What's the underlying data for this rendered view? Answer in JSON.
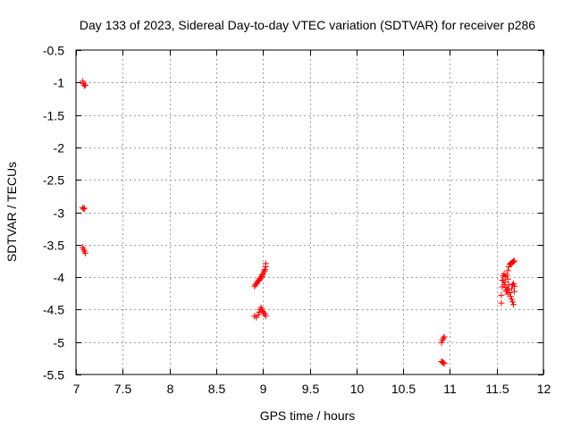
{
  "chart_data": {
    "type": "scatter",
    "title": "Day 133 of 2023, Sidereal Day-to-day VTEC variation (SDTVAR) for receiver p286",
    "xlabel": "GPS time / hours",
    "ylabel": "SDTVAR / TECUs",
    "xlim": [
      7,
      12
    ],
    "ylim": [
      -5.5,
      -0.5
    ],
    "xticks": [
      7,
      7.5,
      8,
      8.5,
      9,
      9.5,
      10,
      10.5,
      11,
      11.5,
      12
    ],
    "xtick_labels": [
      "7",
      "7.5",
      "8",
      "8.5",
      "9",
      "9.5",
      "10",
      "10.5",
      "11",
      "11.5",
      "12"
    ],
    "yticks": [
      -0.5,
      -1,
      -1.5,
      -2,
      -2.5,
      -3,
      -3.5,
      -4,
      -4.5,
      -5,
      -5.5
    ],
    "ytick_labels": [
      "-0.5",
      "-1",
      "-1.5",
      "-2",
      "-2.5",
      "-3",
      "-3.5",
      "-4",
      "-4.5",
      "-5",
      "-5.5"
    ],
    "grid": true,
    "marker": "+",
    "color": "#ff0000",
    "series": [
      {
        "name": "SDTVAR",
        "points": [
          [
            7.07,
            -0.98
          ],
          [
            7.08,
            -1.02
          ],
          [
            7.09,
            -1.05
          ],
          [
            7.1,
            -1.04
          ],
          [
            7.07,
            -2.93
          ],
          [
            7.08,
            -2.95
          ],
          [
            7.09,
            -2.94
          ],
          [
            7.07,
            -3.54
          ],
          [
            7.08,
            -3.57
          ],
          [
            7.09,
            -3.6
          ],
          [
            7.1,
            -3.63
          ],
          [
            8.91,
            -4.14
          ],
          [
            8.92,
            -4.12
          ],
          [
            8.93,
            -4.1
          ],
          [
            8.94,
            -4.08
          ],
          [
            8.95,
            -4.06
          ],
          [
            8.96,
            -4.04
          ],
          [
            8.97,
            -4.02
          ],
          [
            8.98,
            -4.0
          ],
          [
            8.99,
            -3.97
          ],
          [
            9.0,
            -3.95
          ],
          [
            9.01,
            -3.92
          ],
          [
            9.02,
            -3.88
          ],
          [
            9.03,
            -3.84
          ],
          [
            9.03,
            -3.79
          ],
          [
            9.02,
            -3.9
          ],
          [
            8.99,
            -3.99
          ],
          [
            8.96,
            -4.05
          ],
          [
            8.91,
            -4.6
          ],
          [
            8.93,
            -4.62
          ],
          [
            8.95,
            -4.58
          ],
          [
            8.96,
            -4.54
          ],
          [
            8.97,
            -4.5
          ],
          [
            8.98,
            -4.47
          ],
          [
            8.99,
            -4.5
          ],
          [
            9.0,
            -4.53
          ],
          [
            9.01,
            -4.55
          ],
          [
            9.02,
            -4.57
          ],
          [
            9.03,
            -4.6
          ],
          [
            10.91,
            -5.01
          ],
          [
            10.92,
            -4.97
          ],
          [
            10.93,
            -4.94
          ],
          [
            10.94,
            -4.92
          ],
          [
            10.91,
            -5.3
          ],
          [
            10.92,
            -5.31
          ],
          [
            10.93,
            -5.32
          ],
          [
            10.94,
            -5.33
          ],
          [
            11.55,
            -4.4
          ],
          [
            11.55,
            -4.28
          ],
          [
            11.56,
            -4.15
          ],
          [
            11.56,
            -4.05
          ],
          [
            11.57,
            -3.98
          ],
          [
            11.58,
            -3.95
          ],
          [
            11.59,
            -3.99
          ],
          [
            11.59,
            -4.08
          ],
          [
            11.6,
            -4.16
          ],
          [
            11.61,
            -4.2
          ],
          [
            11.62,
            -4.18
          ],
          [
            11.63,
            -4.12
          ],
          [
            11.62,
            -4.03
          ],
          [
            11.61,
            -3.97
          ],
          [
            11.62,
            -3.9
          ],
          [
            11.63,
            -3.84
          ],
          [
            11.64,
            -3.8
          ],
          [
            11.65,
            -3.79
          ],
          [
            11.66,
            -3.78
          ],
          [
            11.67,
            -3.77
          ],
          [
            11.68,
            -3.76
          ],
          [
            11.69,
            -3.75
          ],
          [
            11.64,
            -4.24
          ],
          [
            11.65,
            -4.3
          ],
          [
            11.66,
            -4.34
          ],
          [
            11.67,
            -4.38
          ],
          [
            11.68,
            -4.42
          ],
          [
            11.66,
            -4.18
          ],
          [
            11.67,
            -4.12
          ],
          [
            11.68,
            -4.1
          ],
          [
            11.69,
            -4.14
          ],
          [
            11.69,
            -4.22
          ],
          [
            11.62,
            -4.26
          ],
          [
            11.6,
            -4.22
          ],
          [
            11.58,
            -4.12
          ],
          [
            11.57,
            -4.05
          ]
        ]
      }
    ]
  }
}
